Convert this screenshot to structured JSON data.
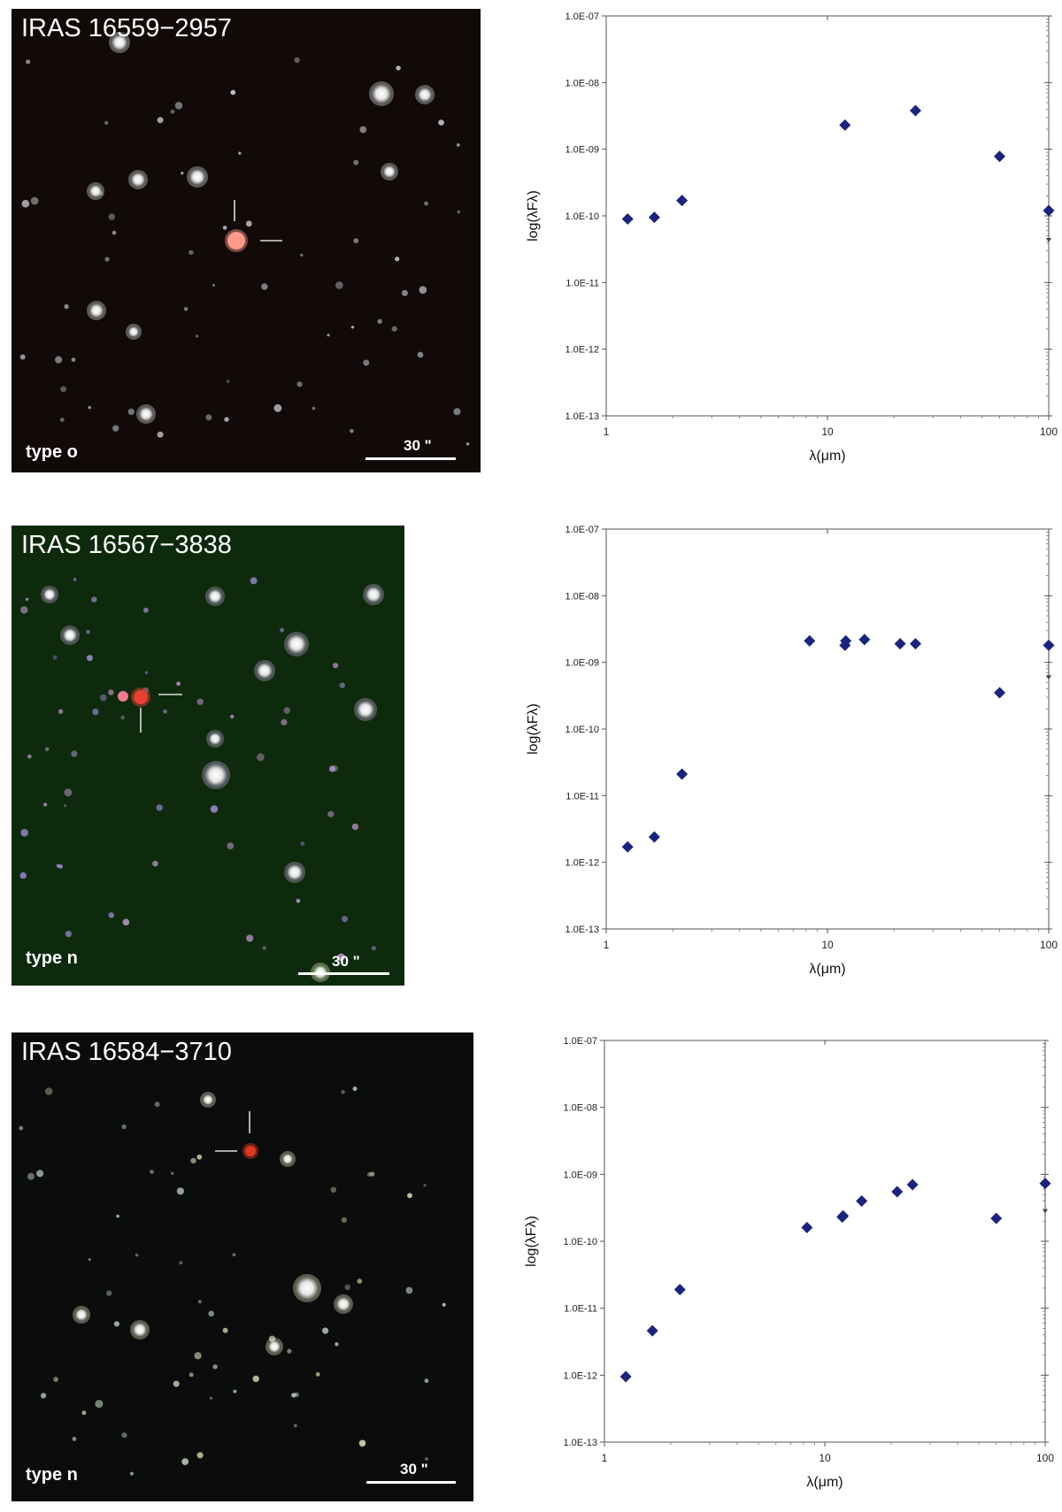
{
  "panels": [
    {
      "image": {
        "title": "IRAS 16559−2957",
        "type_label": "type o",
        "scale_label": "30 \"",
        "background": "#120a08"
      },
      "chart": {
        "ylabel": "log(λFλ)",
        "xlabel": "λ(μm)"
      }
    },
    {
      "image": {
        "title": "IRAS 16567−3838",
        "type_label": "type n",
        "scale_label": "30 \"",
        "background": "#0e2a0c"
      },
      "chart": {
        "ylabel": "log(λFλ)",
        "xlabel": "λ(μm)"
      }
    },
    {
      "image": {
        "title": "IRAS 16584−3710",
        "type_label": "type n",
        "scale_label": "30 \"",
        "background": "#0a0d0c"
      },
      "chart": {
        "ylabel": "log(λFλ)",
        "xlabel": "λ(μm)"
      }
    }
  ],
  "chart_data": [
    {
      "type": "scatter",
      "xlabel": "λ(μm)",
      "ylabel": "log(λFλ)",
      "x_scale": "log",
      "y_scale": "log",
      "xlim": [
        1,
        100
      ],
      "ylim": [
        1e-13,
        1e-07
      ],
      "x_ticks": [
        "1",
        "10",
        "100"
      ],
      "y_ticks": [
        "1.0E-13",
        "1.0E-12",
        "1.0E-11",
        "1.0E-10",
        "1.0E-09",
        "1.0E-08",
        "1.0E-07"
      ],
      "marker_color": "#1a237e",
      "points": [
        {
          "x": 1.25,
          "y": 9e-11
        },
        {
          "x": 1.65,
          "y": 9.5e-11
        },
        {
          "x": 2.2,
          "y": 1.7e-10
        },
        {
          "x": 12,
          "y": 2.3e-09
        },
        {
          "x": 25,
          "y": 3.8e-09
        },
        {
          "x": 60,
          "y": 7.8e-10
        },
        {
          "x": 100,
          "y": 1.2e-10
        }
      ],
      "upper_limits": [
        {
          "x": 100,
          "y": 1.2e-10,
          "to": 4e-11
        }
      ]
    },
    {
      "type": "scatter",
      "xlabel": "λ(μm)",
      "ylabel": "log(λFλ)",
      "x_scale": "log",
      "y_scale": "log",
      "xlim": [
        1,
        100
      ],
      "ylim": [
        1e-13,
        1e-07
      ],
      "x_ticks": [
        "1",
        "10",
        "100"
      ],
      "y_ticks": [
        "1.0E-13",
        "1.0E-12",
        "1.0E-11",
        "1.0E-10",
        "1.0E-09",
        "1.0E-08",
        "1.0E-07"
      ],
      "marker_color": "#1a237e",
      "points": [
        {
          "x": 1.25,
          "y": 1.7e-12
        },
        {
          "x": 1.65,
          "y": 2.4e-12
        },
        {
          "x": 2.2,
          "y": 2.1e-11
        },
        {
          "x": 8.3,
          "y": 2.1e-09
        },
        {
          "x": 12,
          "y": 1.8e-09
        },
        {
          "x": 12.1,
          "y": 2.1e-09
        },
        {
          "x": 14.7,
          "y": 2.2e-09
        },
        {
          "x": 21.3,
          "y": 1.9e-09
        },
        {
          "x": 25,
          "y": 1.9e-09
        },
        {
          "x": 60,
          "y": 3.5e-10
        },
        {
          "x": 100,
          "y": 1.8e-09
        }
      ],
      "upper_limits": [
        {
          "x": 100,
          "y": 1.8e-09,
          "to": 5.5e-10
        }
      ]
    },
    {
      "type": "scatter",
      "xlabel": "λ(μm)",
      "ylabel": "log(λFλ)",
      "x_scale": "log",
      "y_scale": "log",
      "xlim": [
        1,
        100
      ],
      "ylim": [
        1e-13,
        1e-07
      ],
      "x_ticks": [
        "1",
        "10",
        "100"
      ],
      "y_ticks": [
        "1.0E-13",
        "1.0E-12",
        "1.0E-11",
        "1.0E-10",
        "1.0E-09",
        "1.0E-08",
        "1.0E-07"
      ],
      "marker_color": "#1a237e",
      "points": [
        {
          "x": 1.25,
          "y": 9.5e-13
        },
        {
          "x": 1.65,
          "y": 4.6e-12
        },
        {
          "x": 2.2,
          "y": 1.9e-11
        },
        {
          "x": 8.3,
          "y": 1.6e-10
        },
        {
          "x": 12,
          "y": 2.3e-10
        },
        {
          "x": 12.1,
          "y": 2.4e-10
        },
        {
          "x": 14.7,
          "y": 4e-10
        },
        {
          "x": 21.3,
          "y": 5.5e-10
        },
        {
          "x": 25,
          "y": 7e-10
        },
        {
          "x": 60,
          "y": 2.2e-10
        },
        {
          "x": 100,
          "y": 7.3e-10
        }
      ],
      "upper_limits": [
        {
          "x": 100,
          "y": 7.3e-10,
          "to": 2.6e-10
        }
      ]
    }
  ]
}
